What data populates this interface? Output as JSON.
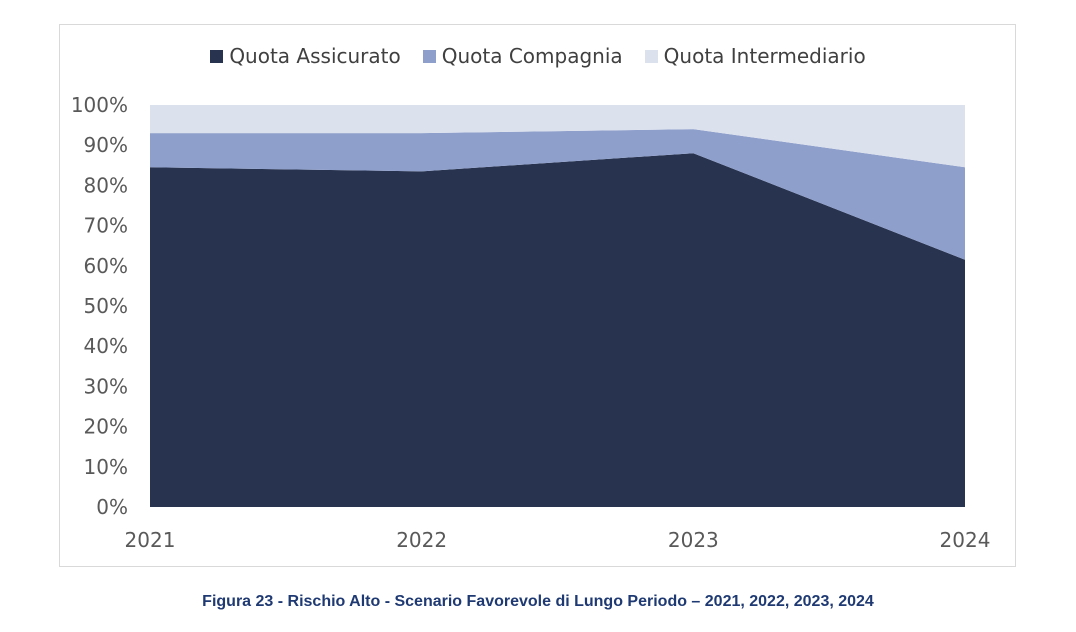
{
  "chart_data": {
    "type": "area",
    "stacked": true,
    "title": "",
    "xlabel": "",
    "ylabel": "",
    "categories": [
      "2021",
      "2022",
      "2023",
      "2024"
    ],
    "series": [
      {
        "name": "Quota Assicurato",
        "values": [
          84.5,
          83.5,
          88,
          61.5
        ],
        "color": "#283350"
      },
      {
        "name": "Quota Compagnia",
        "values": [
          8.5,
          9.5,
          6,
          23
        ],
        "color": "#8e9fcb"
      },
      {
        "name": "Quota Intermediario",
        "values": [
          7,
          7,
          6,
          15.5
        ],
        "color": "#dce1ee"
      }
    ],
    "ylim": [
      0,
      100
    ],
    "yticks": [
      "0%",
      "10%",
      "20%",
      "30%",
      "40%",
      "50%",
      "60%",
      "70%",
      "80%",
      "90%",
      "100%"
    ],
    "grid": false,
    "legend_position": "top"
  },
  "caption": "Figura 23 - Rischio Alto - Scenario Favorevole di Lungo Periodo – 2021, 2022, 2023, 2024"
}
